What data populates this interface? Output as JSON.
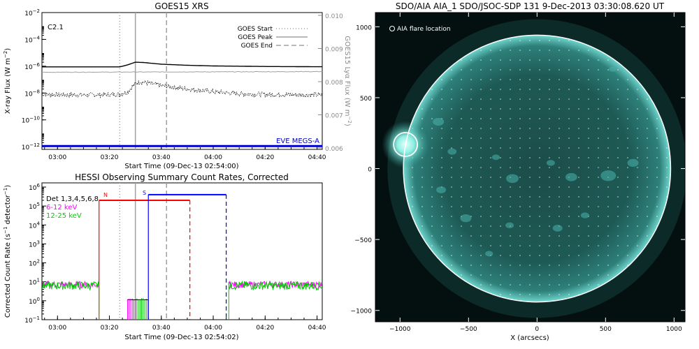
{
  "chart_data": [
    {
      "type": "line",
      "title": "GOES15 XRS",
      "xlabel": "Start Time (09-Dec-13 02:54:00)",
      "ylabel": "X-ray Flux (W m^-2)",
      "ylabel2": "GOES15 Lyα Flux (W m^-2)",
      "xticks": [
        "03:00",
        "03:20",
        "03:40",
        "04:00",
        "04:20",
        "04:40"
      ],
      "yticks": [
        "10^-2",
        "10^-4",
        "10^-6",
        "10^-8",
        "10^-10",
        "10^-12"
      ],
      "yticks2": [
        "0.010",
        "0.009",
        "0.008",
        "0.007",
        "0.006"
      ],
      "flare_class": "C2.1",
      "eve_label": "EVE MEGS-A",
      "legend": [
        {
          "label": "GOES Start",
          "style": "dotted",
          "color": "#a0a0a0"
        },
        {
          "label": "GOES Peak",
          "style": "solid",
          "color": "#a0a0a0"
        },
        {
          "label": "GOES End",
          "style": "dashed",
          "color": "#a0a0a0"
        }
      ],
      "markers": {
        "start": "03:24",
        "peak": "03:30",
        "end": "03:42"
      },
      "series": [
        {
          "name": "long",
          "color": "#000000",
          "x": [
            "02:54",
            "03:10",
            "03:24",
            "03:27",
            "03:30",
            "03:33",
            "03:40",
            "03:50",
            "04:00",
            "04:20",
            "04:42"
          ],
          "y_exp": [
            -6.05,
            -6.05,
            -6.05,
            -5.9,
            -5.7,
            -5.72,
            -5.85,
            -5.93,
            -5.98,
            -6.02,
            -6.04
          ]
        },
        {
          "name": "short",
          "color": "#000000",
          "x": [
            "02:54",
            "03:10",
            "03:24",
            "03:27",
            "03:30",
            "03:32",
            "03:40",
            "03:50",
            "04:00",
            "04:10",
            "04:20",
            "04:42"
          ],
          "y_exp": [
            -8.1,
            -8.15,
            -8.1,
            -7.9,
            -7.3,
            -7.15,
            -7.45,
            -7.7,
            -7.9,
            -8.05,
            -8.1,
            -8.15
          ]
        },
        {
          "name": "Lya",
          "color": "#a0a0a0",
          "x": [
            "02:54",
            "04:42"
          ],
          "y_exp": [
            -6.45,
            -6.4
          ]
        },
        {
          "name": "EVE MEGS-A",
          "color": "#0000cc",
          "x": [
            "02:54",
            "04:42"
          ],
          "y_exp": [
            -11.95,
            -11.95
          ]
        }
      ]
    },
    {
      "type": "line",
      "title": "HESSI Observing Summary Count Rates, Corrected",
      "xlabel": "Start Time (09-Dec-13 02:54:02)",
      "ylabel": "Corrected Count Rate (s^-1 detector^-1)",
      "xticks": [
        "03:00",
        "03:20",
        "03:40",
        "04:00",
        "04:20",
        "04:40"
      ],
      "yticks": [
        "10^6",
        "10^5",
        "10^4",
        "10^3",
        "10^2",
        "10^1",
        "10^0",
        "10^-1"
      ],
      "legend": [
        {
          "label": "Det 1,3,4,5,6,8",
          "color": "#000000"
        },
        {
          "label": "6-12 keV",
          "color": "#ff00ff"
        },
        {
          "label": "12-25 keV",
          "color": "#00cc00"
        }
      ],
      "night_label": "N",
      "saa_label": "S",
      "intervals": {
        "night": {
          "start": "03:16",
          "end": "03:51",
          "color": "#ff0000"
        },
        "saa": {
          "start": "03:35",
          "end": "04:05",
          "color": "#0000ff"
        }
      },
      "markers": {
        "start": "03:24",
        "peak": "03:30",
        "end": "03:42"
      }
    },
    {
      "type": "image",
      "title": "SDO/AIA AIA_1 SDO/JSOC-SDP 131  9-Dec-2013 03:30:08.620 UT",
      "annotation": "AIA flare location",
      "xlabel": "X (arcsecs)",
      "xticks": [
        "-1000",
        "-500",
        "0",
        "500",
        "1000"
      ],
      "yticks": [
        "1000",
        "500",
        "0",
        "-500",
        "-1000"
      ],
      "xlim": [
        -1180,
        1080
      ],
      "ylim": [
        -1080,
        1100
      ],
      "flare_location": {
        "x": -960,
        "y": 170
      },
      "solar_radius": 975
    }
  ]
}
